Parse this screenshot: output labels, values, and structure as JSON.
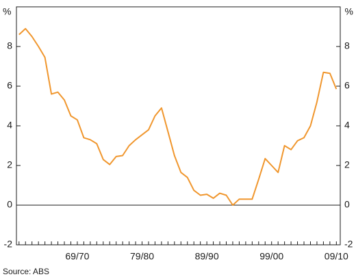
{
  "chart_data": {
    "type": "line",
    "y_unit": "%",
    "y2_unit": "%",
    "source": "Source: ABS",
    "categories": [
      null,
      null,
      null,
      null,
      null,
      null,
      null,
      null,
      null,
      "69/70",
      null,
      null,
      null,
      null,
      null,
      null,
      null,
      null,
      null,
      "79/80",
      null,
      null,
      null,
      null,
      null,
      null,
      null,
      null,
      null,
      "89/90",
      null,
      null,
      null,
      null,
      null,
      null,
      null,
      null,
      null,
      "99/00",
      null,
      null,
      null,
      null,
      null,
      null,
      null,
      null,
      null,
      "09/10"
    ],
    "series": [
      {
        "color": "#f0962d",
        "values": [
          8.6,
          8.9,
          8.5,
          8.0,
          7.45,
          5.6,
          5.7,
          5.3,
          4.5,
          4.3,
          3.4,
          3.3,
          3.1,
          2.3,
          2.05,
          2.45,
          2.5,
          3.0,
          3.3,
          3.55,
          3.8,
          4.5,
          4.9,
          3.7,
          2.5,
          1.65,
          1.4,
          0.75,
          0.5,
          0.55,
          0.35,
          0.6,
          0.5,
          0.0,
          0.3,
          0.3,
          0.3,
          1.3,
          2.35,
          2.0,
          1.65,
          3.0,
          2.8,
          3.25,
          3.4,
          4.0,
          5.2,
          6.7,
          6.65,
          5.85
        ]
      }
    ],
    "ylim": [
      -2,
      10
    ],
    "yticks": [
      -2,
      0,
      2,
      4,
      6,
      8
    ],
    "y2lim": [
      -2,
      10
    ],
    "y2ticks": [
      -2,
      0,
      2,
      4,
      6,
      8
    ],
    "zero_line": true
  }
}
